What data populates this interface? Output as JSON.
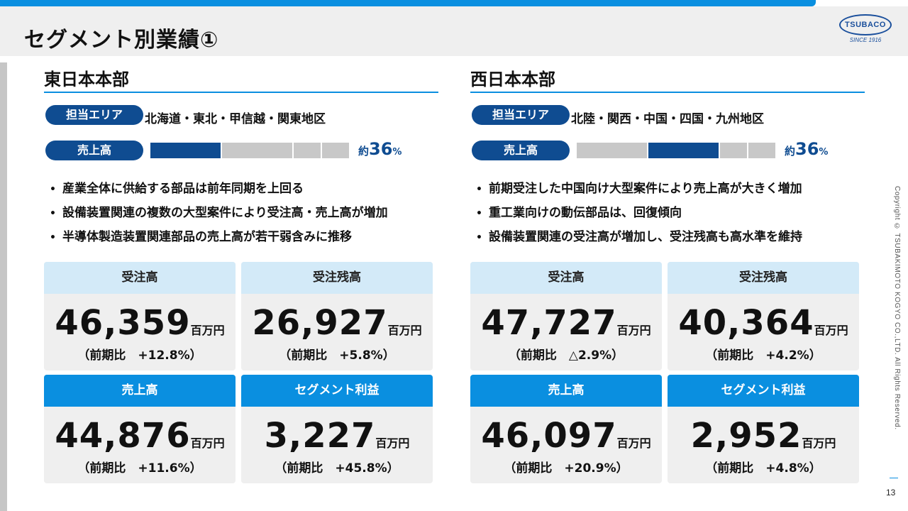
{
  "page": {
    "title": "セグメント別業績①",
    "logo_text": "TSUBACO",
    "logo_since": "SINCE 1916",
    "copyright": "Copyright © TSUBAKIMOTO KOGYO CO.,LTD. All Rights Reserved.",
    "page_number": "13"
  },
  "colors": {
    "accent": "#0a8fe0",
    "navy": "#0f4c91",
    "light_card": "#d3eaf8",
    "card_bg": "#efefef"
  },
  "east": {
    "title": "東日本本部",
    "area_label": "担当エリア",
    "area": "北海道・東北・甲信越・関東地区",
    "sales_label": "売上高",
    "share_prefix": "約",
    "share_value": "36",
    "share_unit": "%",
    "share_bar_highlight_index": 0,
    "bullets": [
      "産業全体に供給する部品は前年同期を上回る",
      "設備装置関連の複数の大型案件により受注高・売上高が増加",
      "半導体製造装置関連部品の売上高が若干弱含みに推移"
    ],
    "cards": [
      {
        "label": "受注高",
        "value": "46,359",
        "unit": "百万円",
        "compare": "（前期比　+12.8%）"
      },
      {
        "label": "受注残高",
        "value": "26,927",
        "unit": "百万円",
        "compare": "（前期比　+5.8%）"
      },
      {
        "label": "売上高",
        "value": "44,876",
        "unit": "百万円",
        "compare": "（前期比　+11.6%）"
      },
      {
        "label": "セグメント利益",
        "value": "3,227",
        "unit": "百万円",
        "compare": "（前期比　+45.8%）"
      }
    ]
  },
  "west": {
    "title": "西日本本部",
    "area_label": "担当エリア",
    "area": "北陸・関西・中国・四国・九州地区",
    "sales_label": "売上高",
    "share_prefix": "約",
    "share_value": "36",
    "share_unit": "%",
    "share_bar_highlight_index": 1,
    "bullets": [
      "前期受注した中国向け大型案件により売上高が大きく増加",
      "重工業向けの動伝部品は、回復傾向",
      "設備装置関連の受注高が増加し、受注残高も高水準を維持"
    ],
    "cards": [
      {
        "label": "受注高",
        "value": "47,727",
        "unit": "百万円",
        "compare": "（前期比　△2.9%）"
      },
      {
        "label": "受注残高",
        "value": "40,364",
        "unit": "百万円",
        "compare": "（前期比　+4.2%）"
      },
      {
        "label": "売上高",
        "value": "46,097",
        "unit": "百万円",
        "compare": "（前期比　+20.9%）"
      },
      {
        "label": "セグメント利益",
        "value": "2,952",
        "unit": "百万円",
        "compare": "（前期比　+4.8%）"
      }
    ]
  }
}
